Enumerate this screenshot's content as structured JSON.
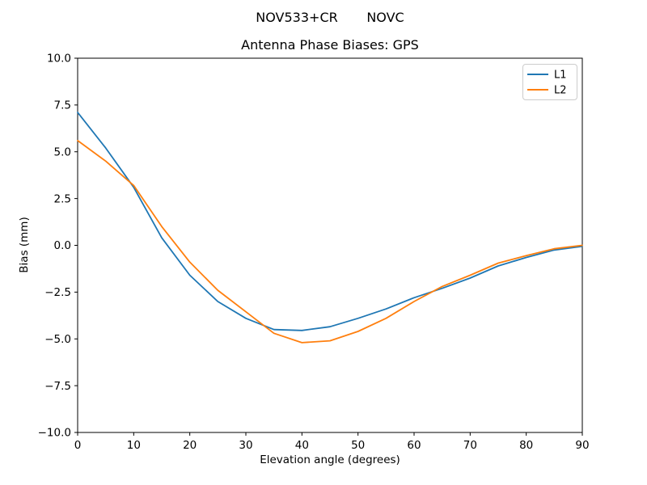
{
  "chart_data": {
    "type": "line",
    "title_line1": "NOV533+CR       NOVC",
    "title_line2": "Antenna Phase Biases: GPS",
    "xlabel": "Elevation angle (degrees)",
    "ylabel": "Bias (mm)",
    "xlim": [
      0,
      90
    ],
    "ylim": [
      -10.0,
      10.0
    ],
    "xticks": [
      0,
      10,
      20,
      30,
      40,
      50,
      60,
      70,
      80,
      90
    ],
    "yticks": [
      -10.0,
      -7.5,
      -5.0,
      -2.5,
      0.0,
      2.5,
      5.0,
      7.5,
      10.0
    ],
    "grid": false,
    "legend_position": "upper right",
    "axis_color": "#000000",
    "legend_border_color": "#cccccc",
    "x": [
      0,
      5,
      10,
      15,
      20,
      25,
      30,
      35,
      40,
      45,
      50,
      55,
      60,
      65,
      70,
      75,
      80,
      85,
      90
    ],
    "series": [
      {
        "name": "L1",
        "color": "#1f77b4",
        "values": [
          7.1,
          5.2,
          3.1,
          0.4,
          -1.6,
          -3.0,
          -3.9,
          -4.5,
          -4.55,
          -4.35,
          -3.9,
          -3.4,
          -2.8,
          -2.3,
          -1.75,
          -1.1,
          -0.65,
          -0.25,
          -0.05
        ]
      },
      {
        "name": "L2",
        "color": "#ff7f0e",
        "values": [
          5.6,
          4.5,
          3.2,
          1.0,
          -0.9,
          -2.4,
          -3.55,
          -4.7,
          -5.2,
          -5.1,
          -4.6,
          -3.9,
          -3.0,
          -2.2,
          -1.6,
          -0.95,
          -0.55,
          -0.18,
          0.0
        ]
      }
    ]
  }
}
